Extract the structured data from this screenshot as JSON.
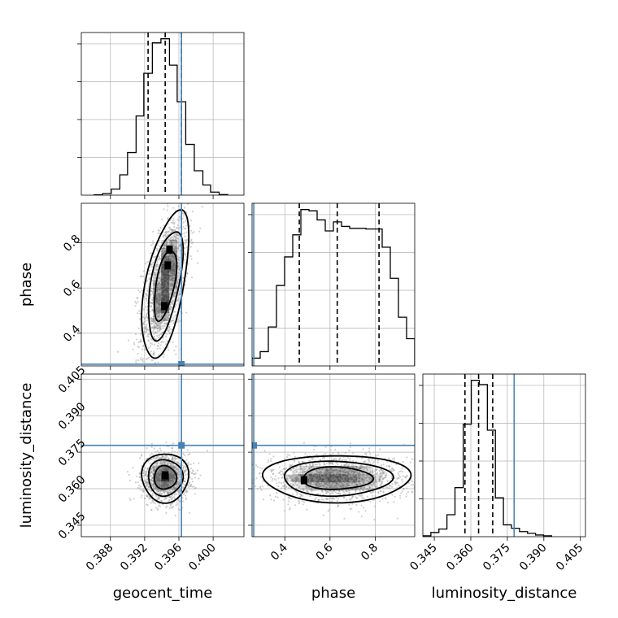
{
  "chart_data": {
    "type": "corner",
    "parameters": [
      "geocent_time",
      "phase",
      "luminosity_distance"
    ],
    "axis_labels": {
      "geocent_time": "geocent_time",
      "phase": "phase",
      "luminosity_distance": "luminosity_distance"
    },
    "ranges": {
      "geocent_time": [
        0.3846,
        0.4036
      ],
      "phase": [
        0.255,
        0.975
      ],
      "luminosity_distance": [
        0.3403,
        0.4071
      ]
    },
    "ticks": {
      "geocent_time": [
        {
          "v": 0.388,
          "label": "0.388"
        },
        {
          "v": 0.392,
          "label": "0.392"
        },
        {
          "v": 0.396,
          "label": "0.396"
        },
        {
          "v": 0.4,
          "label": "0.400"
        }
      ],
      "phase": [
        {
          "v": 0.4,
          "label": "0.4"
        },
        {
          "v": 0.6,
          "label": "0.6"
        },
        {
          "v": 0.8,
          "label": "0.8"
        }
      ],
      "luminosity_distance": [
        {
          "v": 0.345,
          "label": "0.345"
        },
        {
          "v": 0.36,
          "label": "0.360"
        },
        {
          "v": 0.375,
          "label": "0.375"
        },
        {
          "v": 0.39,
          "label": "0.390"
        },
        {
          "v": 0.405,
          "label": "0.405"
        }
      ]
    },
    "injection": {
      "geocent_time": 0.3963,
      "phase": 0.2624,
      "luminosity_distance": 0.3778
    },
    "quantiles": {
      "geocent_time": [
        0.3924,
        0.3944,
        0.3963
      ],
      "phase": [
        0.464,
        0.632,
        0.817
      ],
      "luminosity_distance": [
        0.3576,
        0.3632,
        0.369
      ]
    },
    "histograms": {
      "geocent_time": {
        "edges": [
          0.3861,
          0.3871,
          0.3881,
          0.3891,
          0.39,
          0.391,
          0.3919,
          0.3929,
          0.3939,
          0.3949,
          0.3958,
          0.3968,
          0.3978,
          0.3988,
          0.3997,
          0.4007,
          0.4017
        ],
        "counts": [
          0.2,
          0.8,
          3,
          10,
          21,
          39,
          60,
          75,
          77,
          64,
          46,
          25,
          12,
          5,
          1.5,
          0.3
        ]
      },
      "phase": {
        "edges": [
          0.255,
          0.291,
          0.327,
          0.363,
          0.399,
          0.435,
          0.471,
          0.507,
          0.543,
          0.579,
          0.615,
          0.651,
          0.687,
          0.723,
          0.759,
          0.795,
          0.831,
          0.867,
          0.903,
          0.939,
          0.975
        ],
        "counts": [
          12,
          22,
          60,
          124,
          168,
          202,
          241,
          239,
          225,
          208,
          222,
          215,
          212,
          212,
          211,
          211,
          183,
          135,
          75,
          42
        ]
      },
      "luminosity_distance": {
        "edges": [
          0.3403,
          0.3436,
          0.3469,
          0.3502,
          0.3535,
          0.3569,
          0.3602,
          0.3635,
          0.3668,
          0.3701,
          0.3734,
          0.3767,
          0.38,
          0.3833,
          0.3866,
          0.3899,
          0.3932
        ],
        "counts": [
          1,
          5,
          9,
          26,
          58,
          133,
          185,
          180,
          126,
          46,
          14,
          10,
          6,
          4,
          2,
          1
        ]
      }
    },
    "joint": {
      "phase_vs_geocent_time": {
        "mean": [
          0.3944,
          0.615
        ],
        "sd": [
          0.0013,
          0.155
        ],
        "corr": 0.55,
        "modes": [
          [
            0.3943,
            0.52
          ],
          [
            0.3947,
            0.7
          ],
          [
            0.3949,
            0.77
          ]
        ]
      },
      "luminosity_distance_vs_geocent_time": {
        "mean": [
          0.3944,
          0.3646
        ],
        "sd": [
          0.0013,
          0.0048
        ],
        "corr": 0.0,
        "modes": [
          [
            0.3944,
            0.3655
          ]
        ]
      },
      "luminosity_distance_vs_phase": {
        "mean": [
          0.63,
          0.3643
        ],
        "sd": [
          0.155,
          0.0046
        ],
        "corr": 0.0,
        "modes": [
          [
            0.485,
            0.3635
          ]
        ]
      }
    },
    "contour_levels": 3,
    "colors": {
      "histogram": "#000000",
      "injection": "#4682b4",
      "density": "#000000",
      "grid": "#b0b0b0"
    },
    "grid": true
  }
}
